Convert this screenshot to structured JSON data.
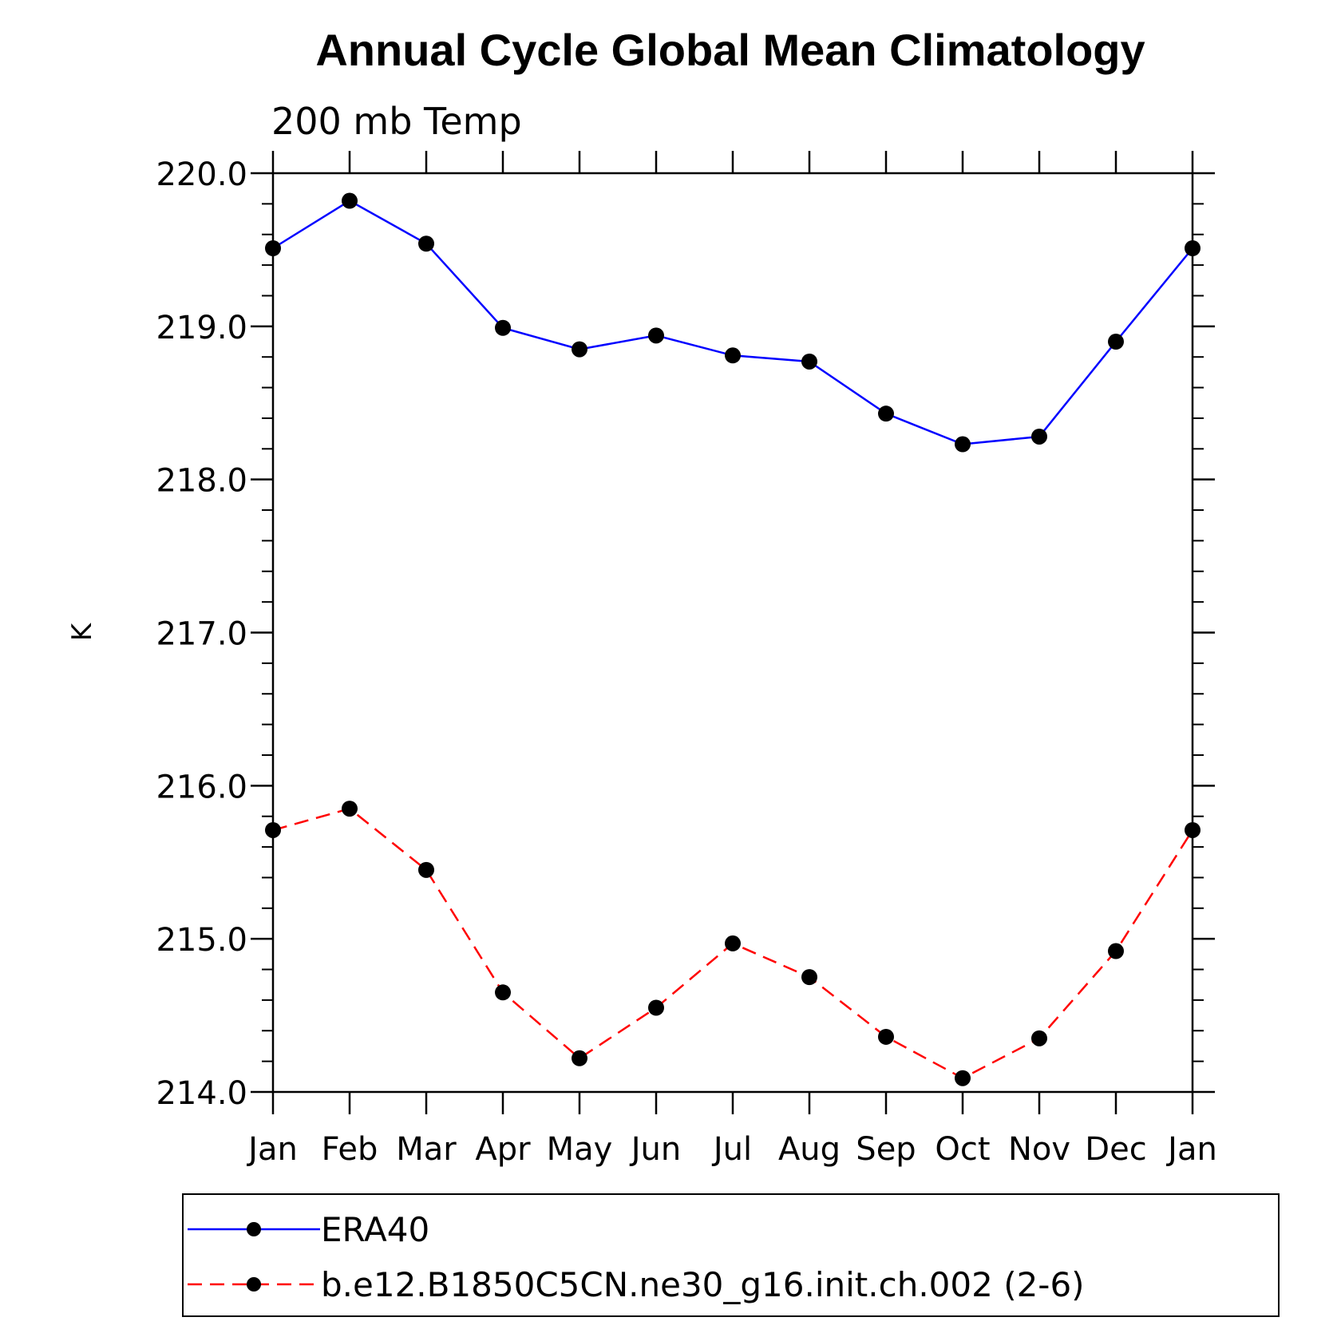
{
  "chart_data": {
    "type": "line",
    "title": "Annual Cycle Global Mean Climatology",
    "subtitle": "200 mb Temp",
    "xlabel": "",
    "ylabel": "K",
    "categories": [
      "Jan",
      "Feb",
      "Mar",
      "Apr",
      "May",
      "Jun",
      "Jul",
      "Aug",
      "Sep",
      "Oct",
      "Nov",
      "Dec",
      "Jan"
    ],
    "ylim": [
      214.0,
      220.0
    ],
    "yticks": [
      "220.0",
      "219.0",
      "218.0",
      "217.0",
      "216.0",
      "215.0",
      "214.0"
    ],
    "grid": false,
    "legend_position": "bottom",
    "series": [
      {
        "name": "ERA40",
        "color": "#0000ff",
        "line_style": "solid",
        "values": [
          219.51,
          219.82,
          219.54,
          218.99,
          218.85,
          218.94,
          218.81,
          218.77,
          218.43,
          218.23,
          218.28,
          218.9,
          219.51
        ]
      },
      {
        "name": "b.e12.B1850C5CN.ne30_g16.init.ch.002 (2-6)",
        "color": "#ff0000",
        "line_style": "dashed",
        "values": [
          215.71,
          215.85,
          215.45,
          214.65,
          214.22,
          214.55,
          214.97,
          214.75,
          214.36,
          214.09,
          214.35,
          214.92,
          215.71
        ]
      }
    ]
  }
}
